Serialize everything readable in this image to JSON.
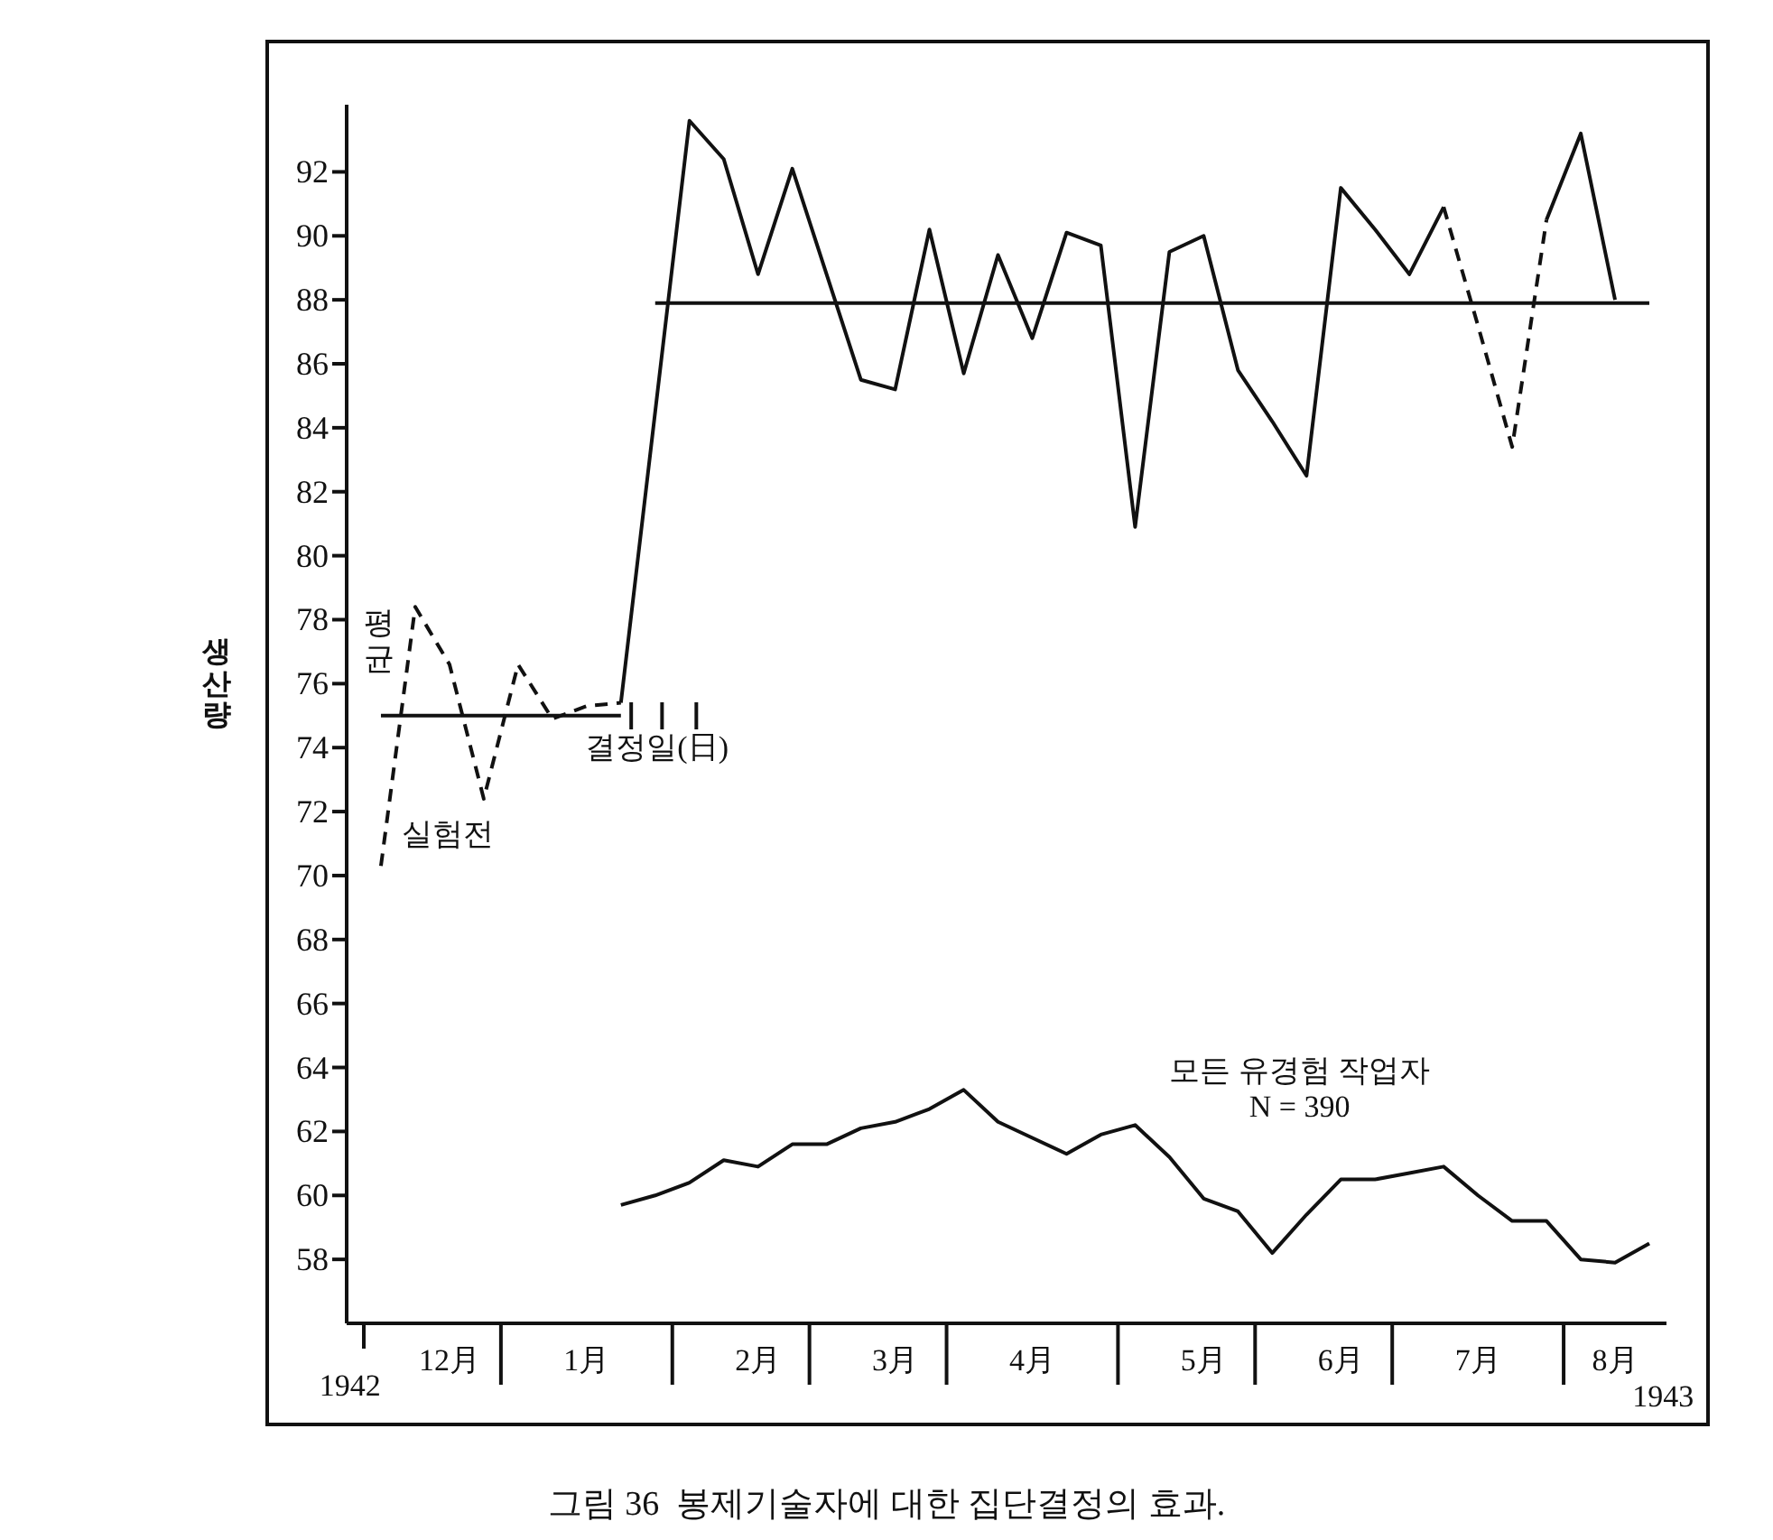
{
  "chart_data": {
    "type": "line",
    "title": "그림 36  봉제기술자에 대한 집단결정의 효과.",
    "ylabel": "생산량",
    "ylim": [
      56,
      94.1
    ],
    "yticks": [
      58,
      60,
      62,
      64,
      66,
      68,
      70,
      72,
      74,
      76,
      78,
      80,
      82,
      84,
      86,
      88,
      90,
      92
    ],
    "categories": [
      null,
      null,
      "12月",
      null,
      null,
      null,
      "1月",
      null,
      null,
      null,
      null,
      "2月",
      null,
      null,
      null,
      "3月",
      null,
      null,
      null,
      "4月",
      null,
      null,
      null,
      null,
      "5月",
      null,
      null,
      null,
      "6月",
      null,
      null,
      null,
      "7月",
      null,
      null,
      null,
      "8月",
      null
    ],
    "series": [
      {
        "color": "#111111",
        "line_style": "dashed",
        "values": [
          70.3,
          78.4,
          76.6,
          72.4,
          76.6,
          74.9,
          75.3,
          75.4,
          null,
          null,
          null,
          null,
          null,
          null,
          null,
          null,
          null,
          null,
          null,
          null,
          null,
          null,
          null,
          null,
          null,
          null,
          null,
          null,
          null,
          null,
          null,
          null,
          null,
          null,
          null,
          null,
          null,
          null
        ]
      },
      {
        "color": "#111111",
        "line_style": "solid",
        "values": [
          null,
          null,
          null,
          null,
          null,
          null,
          null,
          75.4,
          84.5,
          93.6,
          92.4,
          88.8,
          92.1,
          88.8,
          85.5,
          85.2,
          90.2,
          85.7,
          89.4,
          86.8,
          90.1,
          89.7,
          80.9,
          89.5,
          90.0,
          85.8,
          84.2,
          82.5,
          91.5,
          90.2,
          88.8,
          90.9,
          null,
          null,
          null,
          null,
          null,
          null
        ]
      },
      {
        "color": "#111111",
        "line_style": "dashed",
        "values": [
          null,
          null,
          null,
          null,
          null,
          null,
          null,
          null,
          null,
          null,
          null,
          null,
          null,
          null,
          null,
          null,
          null,
          null,
          null,
          null,
          null,
          null,
          null,
          null,
          null,
          null,
          null,
          null,
          null,
          null,
          null,
          90.9,
          87.2,
          83.4,
          90.5,
          null,
          null,
          null
        ]
      },
      {
        "color": "#111111",
        "line_style": "solid",
        "values": [
          null,
          null,
          null,
          null,
          null,
          null,
          null,
          null,
          null,
          null,
          null,
          null,
          null,
          null,
          null,
          null,
          null,
          null,
          null,
          null,
          null,
          null,
          null,
          null,
          null,
          null,
          null,
          null,
          null,
          null,
          null,
          null,
          null,
          null,
          90.5,
          93.2,
          88.0,
          null
        ]
      },
      {
        "color": "#111111",
        "line_style": "solid",
        "values": [
          75.0,
          75.0,
          75.0,
          75.0,
          75.0,
          75.0,
          75.0,
          75.0,
          null,
          null,
          null,
          null,
          null,
          null,
          null,
          null,
          null,
          null,
          null,
          null,
          null,
          null,
          null,
          null,
          null,
          null,
          null,
          null,
          null,
          null,
          null,
          null,
          null,
          null,
          null,
          null,
          null,
          null
        ]
      },
      {
        "color": "#111111",
        "line_style": "solid",
        "values": [
          null,
          null,
          null,
          null,
          null,
          null,
          null,
          null,
          87.9,
          87.9,
          87.9,
          87.9,
          87.9,
          87.9,
          87.9,
          87.9,
          87.9,
          87.9,
          87.9,
          87.9,
          87.9,
          87.9,
          87.9,
          87.9,
          87.9,
          87.9,
          87.9,
          87.9,
          87.9,
          87.9,
          87.9,
          87.9,
          87.9,
          87.9,
          87.9,
          87.9,
          87.9,
          87.9
        ]
      },
      {
        "color": "#111111",
        "line_style": "solid",
        "values": [
          null,
          null,
          null,
          null,
          null,
          null,
          null,
          59.7,
          60.0,
          60.4,
          61.1,
          60.9,
          61.6,
          61.6,
          62.1,
          62.3,
          62.7,
          63.3,
          62.3,
          61.8,
          61.3,
          61.9,
          62.2,
          61.2,
          59.9,
          59.5,
          58.2,
          59.4,
          60.5,
          60.5,
          60.7,
          60.9,
          60.0,
          59.2,
          59.2,
          58.0,
          57.9,
          58.5
        ]
      }
    ],
    "annotations": [
      "평\n균",
      "실험전",
      "결정일(日)",
      "모든 유경험 작업자\nN = 390",
      "1942",
      "1943"
    ],
    "marker": "none",
    "grid": false,
    "legend": false
  }
}
